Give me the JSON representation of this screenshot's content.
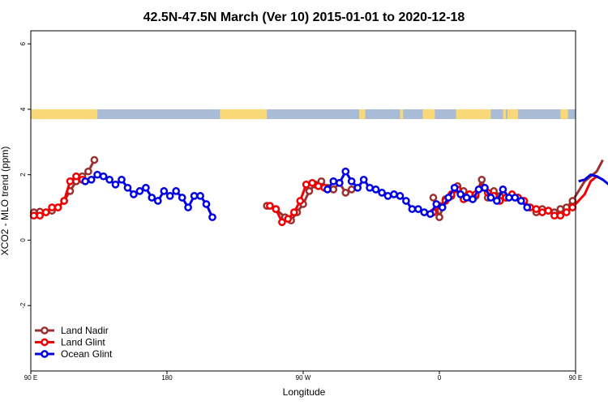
{
  "chart_data": {
    "type": "line",
    "title": "42.5N-47.5N March (Ver 10)   2015-01-01 to 2020-12-18",
    "xlabel": "Longitude",
    "ylabel": "XCO2 - MLO trend (ppm)",
    "xlim": [
      90,
      450
    ],
    "ylim": [
      -4,
      6.4
    ],
    "x_ticks": [
      {
        "value": 90,
        "label": "90 E"
      },
      {
        "value": 180,
        "label": "180"
      },
      {
        "value": 270,
        "label": "90 W"
      },
      {
        "value": 360,
        "label": "0"
      },
      {
        "value": 450,
        "label": "90 E"
      },
      {
        "value": 540,
        "label": "180"
      }
    ],
    "y_ticks": [
      {
        "value": -2,
        "label": "-2"
      },
      {
        "value": 0,
        "label": "0"
      },
      {
        "value": 2,
        "label": "2"
      },
      {
        "value": 4,
        "label": "4"
      },
      {
        "value": 6,
        "label": "6"
      }
    ],
    "land_ocean_band": {
      "y_range": [
        3.7,
        4.0
      ],
      "land_color": "#f8d878",
      "ocean_color": "#a8bcd8",
      "land_segments": [
        [
          90,
          134
        ],
        [
          215,
          246
        ],
        [
          307,
          311
        ],
        [
          334,
          336
        ],
        [
          349,
          357
        ],
        [
          371,
          394
        ],
        [
          402,
          404
        ],
        [
          405,
          412
        ],
        [
          440,
          445
        ],
        [
          450,
          485
        ],
        [
          505,
          515
        ]
      ]
    },
    "legend": {
      "position": "bottom-left"
    },
    "series": [
      {
        "name": "Land Nadir",
        "color": "#9b3030",
        "points": [
          [
            92,
            0.85
          ],
          [
            96,
            0.87
          ],
          [
            100,
            0.85
          ],
          [
            104,
            0.9
          ],
          [
            108,
            1.0
          ],
          [
            112,
            1.2
          ],
          [
            116,
            1.5
          ],
          [
            120,
            1.8
          ],
          [
            124,
            1.95
          ],
          [
            128,
            2.1
          ],
          [
            132,
            2.45
          ],
          [
            246,
            1.05
          ],
          [
            252,
            0.95
          ],
          [
            258,
            0.7
          ],
          [
            262,
            0.6
          ],
          [
            266,
            0.85
          ],
          [
            270,
            1.1
          ],
          [
            274,
            1.5
          ],
          [
            278,
            1.7
          ],
          [
            282,
            1.8
          ],
          [
            286,
            1.6
          ],
          [
            290,
            1.55
          ],
          [
            294,
            1.75
          ],
          [
            298,
            1.45
          ],
          [
            302,
            1.55
          ],
          [
            356,
            1.3
          ],
          [
            360,
            0.7
          ],
          [
            364,
            1.25
          ],
          [
            368,
            1.35
          ],
          [
            372,
            1.65
          ],
          [
            376,
            1.5
          ],
          [
            380,
            1.3
          ],
          [
            384,
            1.35
          ],
          [
            388,
            1.85
          ],
          [
            392,
            1.3
          ],
          [
            396,
            1.5
          ],
          [
            400,
            1.35
          ],
          [
            404,
            1.3
          ],
          [
            408,
            1.35
          ],
          [
            412,
            1.3
          ],
          [
            416,
            1.2
          ],
          [
            420,
            1.0
          ],
          [
            424,
            0.85
          ],
          [
            428,
            0.95
          ],
          [
            432,
            0.9
          ],
          [
            436,
            0.85
          ],
          [
            440,
            0.95
          ],
          [
            444,
            1.0
          ],
          [
            448,
            1.2
          ],
          [
            452,
            1.5
          ],
          [
            456,
            1.8
          ],
          [
            460,
            1.95
          ],
          [
            464,
            2.1
          ],
          [
            468,
            2.45
          ]
        ]
      },
      {
        "name": "Land Glint",
        "color": "#f00000",
        "points": [
          [
            92,
            0.75
          ],
          [
            96,
            0.75
          ],
          [
            100,
            0.85
          ],
          [
            104,
            1.0
          ],
          [
            108,
            1.0
          ],
          [
            112,
            1.2
          ],
          [
            116,
            1.8
          ],
          [
            120,
            1.95
          ],
          [
            124,
            1.85
          ],
          [
            248,
            1.05
          ],
          [
            252,
            0.95
          ],
          [
            256,
            0.55
          ],
          [
            260,
            0.65
          ],
          [
            264,
            0.85
          ],
          [
            268,
            1.2
          ],
          [
            272,
            1.7
          ],
          [
            276,
            1.75
          ],
          [
            280,
            1.65
          ],
          [
            284,
            1.6
          ],
          [
            356,
            0.85
          ],
          [
            360,
            1.05
          ],
          [
            364,
            1.2
          ],
          [
            368,
            1.4
          ],
          [
            372,
            1.55
          ],
          [
            376,
            1.25
          ],
          [
            380,
            1.4
          ],
          [
            384,
            1.4
          ],
          [
            388,
            1.6
          ],
          [
            392,
            1.45
          ],
          [
            396,
            1.35
          ],
          [
            400,
            1.2
          ],
          [
            404,
            1.3
          ],
          [
            408,
            1.4
          ],
          [
            412,
            1.3
          ],
          [
            416,
            1.2
          ],
          [
            420,
            1.0
          ],
          [
            424,
            0.95
          ],
          [
            428,
            0.85
          ],
          [
            432,
            0.9
          ],
          [
            436,
            0.75
          ],
          [
            440,
            0.75
          ],
          [
            444,
            0.85
          ],
          [
            448,
            1.0
          ],
          [
            452,
            1.2
          ],
          [
            456,
            1.4
          ],
          [
            460,
            1.8
          ],
          [
            464,
            1.95
          ],
          [
            468,
            1.85
          ]
        ]
      },
      {
        "name": "Ocean Glint",
        "color": "#0000e0",
        "points": [
          [
            126,
            1.8
          ],
          [
            130,
            1.85
          ],
          [
            134,
            2.0
          ],
          [
            138,
            1.95
          ],
          [
            142,
            1.85
          ],
          [
            146,
            1.7
          ],
          [
            150,
            1.85
          ],
          [
            154,
            1.6
          ],
          [
            158,
            1.4
          ],
          [
            162,
            1.5
          ],
          [
            166,
            1.6
          ],
          [
            170,
            1.3
          ],
          [
            174,
            1.2
          ],
          [
            178,
            1.5
          ],
          [
            182,
            1.35
          ],
          [
            186,
            1.5
          ],
          [
            190,
            1.3
          ],
          [
            194,
            1.0
          ],
          [
            198,
            1.35
          ],
          [
            202,
            1.35
          ],
          [
            206,
            1.1
          ],
          [
            210,
            0.7
          ],
          [
            286,
            1.55
          ],
          [
            290,
            1.8
          ],
          [
            294,
            1.75
          ],
          [
            298,
            2.1
          ],
          [
            302,
            1.8
          ],
          [
            306,
            1.6
          ],
          [
            310,
            1.85
          ],
          [
            314,
            1.6
          ],
          [
            318,
            1.55
          ],
          [
            322,
            1.45
          ],
          [
            326,
            1.35
          ],
          [
            330,
            1.4
          ],
          [
            334,
            1.35
          ],
          [
            338,
            1.2
          ],
          [
            342,
            0.95
          ],
          [
            346,
            0.95
          ],
          [
            350,
            0.85
          ],
          [
            354,
            0.8
          ],
          [
            358,
            1.1
          ],
          [
            362,
            1.0
          ],
          [
            366,
            1.3
          ],
          [
            370,
            1.6
          ],
          [
            374,
            1.4
          ],
          [
            378,
            1.3
          ],
          [
            382,
            1.25
          ],
          [
            386,
            1.55
          ],
          [
            390,
            1.6
          ],
          [
            394,
            1.3
          ],
          [
            398,
            1.2
          ],
          [
            402,
            1.55
          ],
          [
            406,
            1.3
          ],
          [
            410,
            1.3
          ],
          [
            414,
            1.2
          ],
          [
            418,
            1.0
          ],
          [
            452,
            1.8
          ],
          [
            456,
            1.85
          ],
          [
            460,
            2.0
          ],
          [
            464,
            1.95
          ],
          [
            468,
            1.85
          ],
          [
            472,
            1.7
          ],
          [
            476,
            1.85
          ],
          [
            480,
            1.6
          ],
          [
            484,
            1.4
          ],
          [
            488,
            1.5
          ]
        ]
      }
    ]
  }
}
